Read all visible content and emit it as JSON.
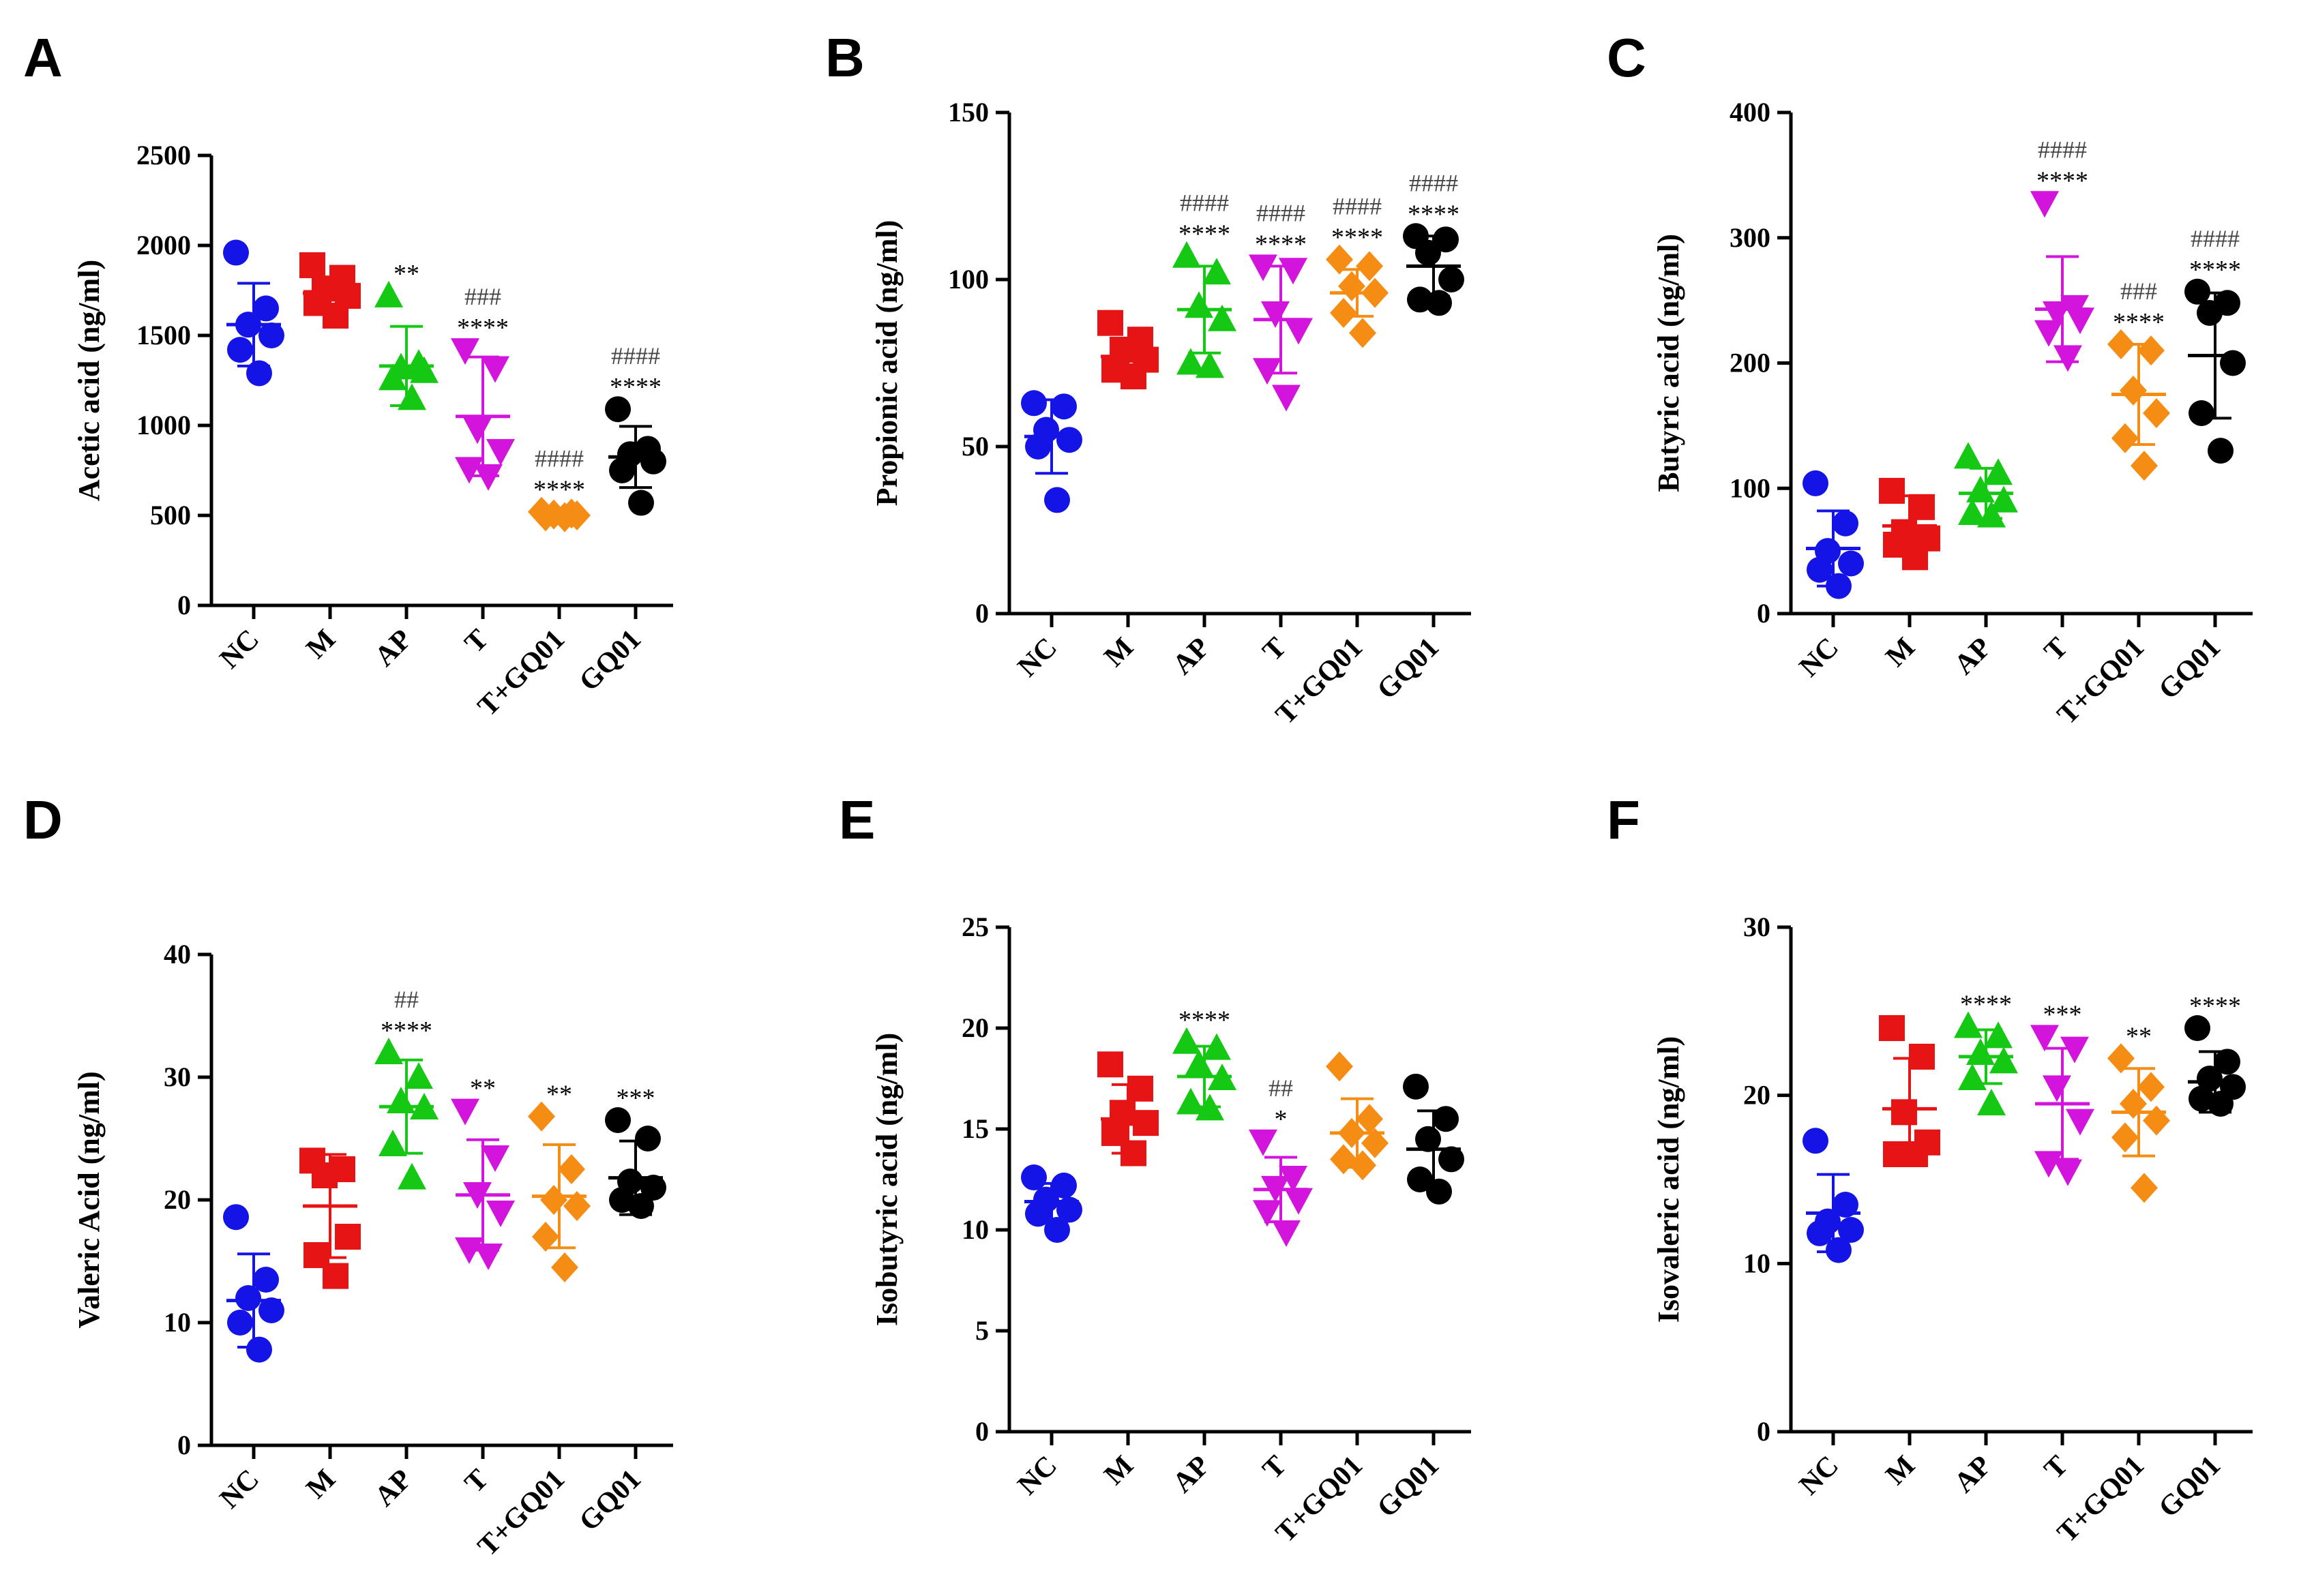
{
  "figure": {
    "groups": [
      "NC",
      "M",
      "AP",
      "T",
      "T+GQ01",
      "GQ01"
    ],
    "group_colors": [
      "#1414e6",
      "#e61414",
      "#14c814",
      "#d214dc",
      "#f58c14",
      "#000000"
    ],
    "group_markers": [
      "circle",
      "square",
      "triangle-up",
      "triangle-down",
      "diamond",
      "circle"
    ]
  },
  "chart_data": [
    {
      "panel": "A",
      "type": "scatter",
      "ylabel": "Acetic acid (ng/ml)",
      "ylim": [
        0,
        2500
      ],
      "yticks": [
        0,
        500,
        1000,
        1500,
        2000,
        2500
      ],
      "categories": [
        "NC",
        "M",
        "AP",
        "T",
        "T+GQ01",
        "GQ01"
      ],
      "series": [
        {
          "name": "NC",
          "points": [
            1960,
            1650,
            1560,
            1500,
            1420,
            1290
          ],
          "mean": 1560,
          "sd": 230,
          "stars": "",
          "hashes": ""
        },
        {
          "name": "M",
          "points": [
            1890,
            1820,
            1760,
            1720,
            1680,
            1610
          ],
          "mean": 1735,
          "sd": 90,
          "stars": "",
          "hashes": ""
        },
        {
          "name": "AP",
          "points": [
            1720,
            1340,
            1320,
            1300,
            1260,
            1150
          ],
          "mean": 1330,
          "sd": 220,
          "stars": "**",
          "hashes": ""
        },
        {
          "name": "T",
          "points": [
            1420,
            1320,
            980,
            860,
            760,
            720
          ],
          "mean": 1050,
          "sd": 330,
          "stars": "****",
          "hashes": "###"
        },
        {
          "name": "T+GQ01",
          "points": [
            520,
            510,
            505,
            500,
            495,
            490
          ],
          "mean": 503,
          "sd": 12,
          "stars": "****",
          "hashes": "####"
        },
        {
          "name": "GQ01",
          "points": [
            1090,
            870,
            840,
            800,
            750,
            570
          ],
          "mean": 825,
          "sd": 170,
          "stars": "****",
          "hashes": "####"
        }
      ]
    },
    {
      "panel": "B",
      "type": "scatter",
      "ylabel": "Propionic acid (ng/ml)",
      "ylim": [
        0,
        150
      ],
      "yticks": [
        0,
        50,
        100,
        150
      ],
      "categories": [
        "NC",
        "M",
        "AP",
        "T",
        "T+GQ01",
        "GQ01"
      ],
      "series": [
        {
          "name": "NC",
          "points": [
            63,
            62,
            55,
            52,
            50,
            34
          ],
          "mean": 53,
          "sd": 11,
          "stars": "",
          "hashes": ""
        },
        {
          "name": "M",
          "points": [
            87,
            82,
            79,
            76,
            73,
            71
          ],
          "mean": 77,
          "sd": 5,
          "stars": "",
          "hashes": ""
        },
        {
          "name": "AP",
          "points": [
            107,
            102,
            92,
            88,
            75,
            74
          ],
          "mean": 91,
          "sd": 13,
          "stars": "****",
          "hashes": "####"
        },
        {
          "name": "T",
          "points": [
            104,
            103,
            90,
            85,
            73,
            65
          ],
          "mean": 88,
          "sd": 16,
          "stars": "****",
          "hashes": "####"
        },
        {
          "name": "T+GQ01",
          "points": [
            106,
            104,
            98,
            96,
            90,
            84
          ],
          "mean": 96,
          "sd": 7,
          "stars": "****",
          "hashes": "####"
        },
        {
          "name": "GQ01",
          "points": [
            113,
            112,
            108,
            100,
            94,
            93
          ],
          "mean": 104,
          "sd": 9,
          "stars": "****",
          "hashes": "####"
        }
      ]
    },
    {
      "panel": "C",
      "type": "scatter",
      "ylabel": "Butyric acid (ng/ml)",
      "ylim": [
        0,
        400
      ],
      "yticks": [
        0,
        100,
        200,
        300,
        400
      ],
      "categories": [
        "NC",
        "M",
        "AP",
        "T",
        "T+GQ01",
        "GQ01"
      ],
      "series": [
        {
          "name": "NC",
          "points": [
            104,
            72,
            50,
            40,
            35,
            22
          ],
          "mean": 52,
          "sd": 30,
          "stars": "",
          "hashes": ""
        },
        {
          "name": "M",
          "points": [
            98,
            85,
            65,
            60,
            55,
            45
          ],
          "mean": 70,
          "sd": 24,
          "stars": "",
          "hashes": ""
        },
        {
          "name": "AP",
          "points": [
            125,
            112,
            98,
            90,
            80,
            78
          ],
          "mean": 96,
          "sd": 20,
          "stars": "",
          "hashes": ""
        },
        {
          "name": "T",
          "points": [
            328,
            245,
            240,
            235,
            225,
            205
          ],
          "mean": 243,
          "sd": 42,
          "stars": "****",
          "hashes": "####"
        },
        {
          "name": "T+GQ01",
          "points": [
            215,
            210,
            178,
            160,
            140,
            118
          ],
          "mean": 175,
          "sd": 40,
          "stars": "****",
          "hashes": "###"
        },
        {
          "name": "GQ01",
          "points": [
            257,
            248,
            240,
            200,
            160,
            130
          ],
          "mean": 206,
          "sd": 50,
          "stars": "****",
          "hashes": "####"
        }
      ]
    },
    {
      "panel": "D",
      "type": "scatter",
      "ylabel": "Valeric Acid (ng/ml)",
      "ylim": [
        0,
        40
      ],
      "yticks": [
        0,
        10,
        20,
        30,
        40
      ],
      "categories": [
        "NC",
        "M",
        "AP",
        "T",
        "T+GQ01",
        "GQ01"
      ],
      "series": [
        {
          "name": "NC",
          "points": [
            18.6,
            13.5,
            12.0,
            11.0,
            10.0,
            7.8
          ],
          "mean": 11.8,
          "sd": 3.8,
          "stars": "",
          "hashes": ""
        },
        {
          "name": "M",
          "points": [
            23.2,
            22.5,
            22.0,
            17.0,
            15.5,
            13.8
          ],
          "mean": 19.5,
          "sd": 4.2,
          "stars": "",
          "hashes": ""
        },
        {
          "name": "AP",
          "points": [
            32.0,
            30.0,
            28.0,
            27.5,
            24.5,
            21.8
          ],
          "mean": 27.6,
          "sd": 3.8,
          "stars": "****",
          "hashes": "##"
        },
        {
          "name": "T",
          "points": [
            27.3,
            23.5,
            20.5,
            19.0,
            16.0,
            15.5
          ],
          "mean": 20.4,
          "sd": 4.5,
          "stars": "**",
          "hashes": ""
        },
        {
          "name": "T+GQ01",
          "points": [
            26.8,
            22.5,
            20.0,
            19.5,
            17.0,
            14.5
          ],
          "mean": 20.3,
          "sd": 4.2,
          "stars": "**",
          "hashes": ""
        },
        {
          "name": "GQ01",
          "points": [
            26.5,
            25.0,
            21.5,
            21.0,
            20.0,
            19.5
          ],
          "mean": 21.8,
          "sd": 3.0,
          "stars": "***",
          "hashes": ""
        }
      ]
    },
    {
      "panel": "E",
      "type": "scatter",
      "ylabel": "Isobutyric acid (ng/ml)",
      "ylim": [
        0,
        25
      ],
      "yticks": [
        0,
        5,
        10,
        15,
        20,
        25
      ],
      "categories": [
        "NC",
        "M",
        "AP",
        "T",
        "T+GQ01",
        "GQ01"
      ],
      "series": [
        {
          "name": "NC",
          "points": [
            12.6,
            12.2,
            11.5,
            11.0,
            10.8,
            10.0
          ],
          "mean": 11.4,
          "sd": 0.9,
          "stars": "",
          "hashes": ""
        },
        {
          "name": "M",
          "points": [
            18.2,
            17.0,
            15.8,
            15.3,
            14.8,
            13.8
          ],
          "mean": 15.5,
          "sd": 1.7,
          "stars": "",
          "hashes": ""
        },
        {
          "name": "AP",
          "points": [
            19.3,
            19.0,
            18.2,
            17.5,
            16.3,
            16.0
          ],
          "mean": 17.6,
          "sd": 1.5,
          "stars": "****",
          "hashes": ""
        },
        {
          "name": "T",
          "points": [
            14.4,
            12.6,
            12.1,
            11.5,
            10.9,
            9.9
          ],
          "mean": 12.0,
          "sd": 1.6,
          "stars": "*",
          "hashes": "##"
        },
        {
          "name": "T+GQ01",
          "points": [
            18.1,
            15.5,
            14.8,
            14.3,
            13.5,
            13.2
          ],
          "mean": 14.8,
          "sd": 1.7,
          "stars": "",
          "hashes": ""
        },
        {
          "name": "GQ01",
          "points": [
            17.1,
            15.5,
            14.5,
            13.5,
            12.5,
            11.9
          ],
          "mean": 14.0,
          "sd": 1.9,
          "stars": "",
          "hashes": ""
        }
      ]
    },
    {
      "panel": "F",
      "type": "scatter",
      "ylabel": "Isovaleric acid (ng/ml)",
      "ylim": [
        0,
        30
      ],
      "yticks": [
        0,
        10,
        20,
        30
      ],
      "categories": [
        "NC",
        "M",
        "AP",
        "T",
        "T+GQ01",
        "GQ01"
      ],
      "series": [
        {
          "name": "NC",
          "points": [
            17.3,
            13.5,
            12.5,
            12.0,
            11.8,
            10.8
          ],
          "mean": 13.0,
          "sd": 2.3,
          "stars": "",
          "hashes": ""
        },
        {
          "name": "M",
          "points": [
            24.0,
            22.3,
            19.0,
            17.2,
            16.5,
            16.5
          ],
          "mean": 19.2,
          "sd": 3.0,
          "stars": "",
          "hashes": ""
        },
        {
          "name": "AP",
          "points": [
            24.1,
            23.5,
            22.5,
            22.0,
            21.0,
            19.5
          ],
          "mean": 22.3,
          "sd": 1.6,
          "stars": "****",
          "hashes": ""
        },
        {
          "name": "T",
          "points": [
            23.5,
            22.8,
            20.5,
            18.5,
            16.0,
            15.5
          ],
          "mean": 19.5,
          "sd": 3.3,
          "stars": "***",
          "hashes": ""
        },
        {
          "name": "T+GQ01",
          "points": [
            22.2,
            20.5,
            19.5,
            18.5,
            17.5,
            14.5
          ],
          "mean": 19.0,
          "sd": 2.6,
          "stars": "**",
          "hashes": ""
        },
        {
          "name": "GQ01",
          "points": [
            24.0,
            22.0,
            21.0,
            20.5,
            19.8,
            19.5
          ],
          "mean": 20.8,
          "sd": 1.8,
          "stars": "****",
          "hashes": ""
        }
      ]
    }
  ]
}
